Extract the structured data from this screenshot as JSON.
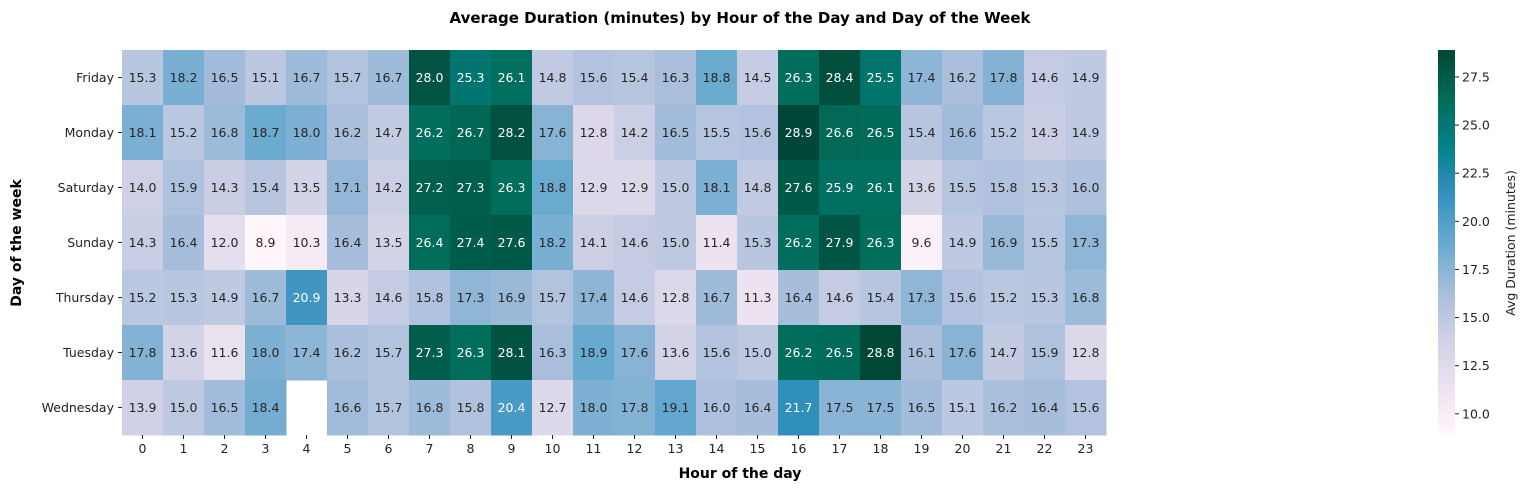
{
  "chart_data": {
    "type": "heatmap",
    "title": "Average Duration (minutes) by Hour of the Day and Day of the Week",
    "xlabel": "Hour of the day",
    "ylabel": "Day of the week",
    "x_categories": [
      "0",
      "1",
      "2",
      "3",
      "4",
      "5",
      "6",
      "7",
      "8",
      "9",
      "10",
      "11",
      "12",
      "13",
      "14",
      "15",
      "16",
      "17",
      "18",
      "19",
      "20",
      "21",
      "22",
      "23"
    ],
    "y_categories": [
      "Friday",
      "Monday",
      "Saturday",
      "Sunday",
      "Thursday",
      "Tuesday",
      "Wednesday"
    ],
    "values": [
      [
        15.3,
        18.2,
        16.5,
        15.1,
        16.7,
        15.7,
        16.7,
        28.0,
        25.3,
        26.1,
        14.8,
        15.6,
        15.4,
        16.3,
        18.8,
        14.5,
        26.3,
        28.4,
        25.5,
        17.4,
        16.2,
        17.8,
        14.6,
        14.9
      ],
      [
        18.1,
        15.2,
        16.8,
        18.7,
        18.0,
        16.2,
        14.7,
        26.2,
        26.7,
        28.2,
        17.6,
        12.8,
        14.2,
        16.5,
        15.5,
        15.6,
        28.9,
        26.6,
        26.5,
        15.4,
        16.6,
        15.2,
        14.3,
        14.9
      ],
      [
        14.0,
        15.9,
        14.3,
        15.4,
        13.5,
        17.1,
        14.2,
        27.2,
        27.3,
        26.3,
        18.8,
        12.9,
        12.9,
        15.0,
        18.1,
        14.8,
        27.6,
        25.9,
        26.1,
        13.6,
        15.5,
        15.8,
        15.3,
        16.0
      ],
      [
        14.3,
        16.4,
        12.0,
        8.9,
        10.3,
        16.4,
        13.5,
        26.4,
        27.4,
        27.6,
        18.2,
        14.1,
        14.6,
        15.0,
        11.4,
        15.3,
        26.2,
        27.9,
        26.3,
        9.6,
        14.9,
        16.9,
        15.5,
        17.3
      ],
      [
        15.2,
        15.3,
        14.9,
        16.7,
        20.9,
        13.3,
        14.6,
        15.8,
        17.3,
        16.9,
        15.7,
        17.4,
        14.6,
        12.8,
        16.7,
        11.3,
        16.4,
        14.6,
        15.4,
        17.3,
        15.6,
        15.2,
        15.3,
        16.8
      ],
      [
        17.8,
        13.6,
        11.6,
        18.0,
        17.4,
        16.2,
        15.7,
        27.3,
        26.3,
        28.1,
        16.3,
        18.9,
        17.6,
        13.6,
        15.6,
        15.0,
        26.2,
        26.5,
        28.8,
        16.1,
        17.6,
        14.7,
        15.9,
        12.8
      ],
      [
        13.9,
        15.0,
        16.5,
        18.4,
        null,
        16.6,
        15.7,
        16.8,
        15.8,
        20.4,
        12.7,
        18.0,
        17.8,
        19.1,
        16.0,
        16.4,
        21.7,
        17.5,
        17.5,
        16.5,
        15.1,
        16.2,
        16.4,
        15.6
      ]
    ],
    "value_format": "0.1f",
    "colormap": "PuBuGn",
    "color_scale": {
      "vmin": 8.9,
      "vmax": 28.9
    },
    "colorbar": {
      "label": "Avg Duration (minutes)",
      "ticks": [
        10.0,
        12.5,
        15.0,
        17.5,
        20.0,
        22.5,
        25.0,
        27.5
      ],
      "tick_labels": [
        "10.0",
        "12.5",
        "15.0",
        "17.5",
        "20.0",
        "22.5",
        "25.0",
        "27.5"
      ]
    },
    "colormap_stops": [
      [
        0.0,
        "#fff7fb"
      ],
      [
        0.125,
        "#ece2f0"
      ],
      [
        0.25,
        "#d0d1e6"
      ],
      [
        0.375,
        "#a6bddb"
      ],
      [
        0.5,
        "#67a9cf"
      ],
      [
        0.625,
        "#3690c0"
      ],
      [
        0.75,
        "#02818a"
      ],
      [
        0.875,
        "#016c59"
      ],
      [
        1.0,
        "#014636"
      ]
    ],
    "grid": false,
    "legend": "colorbar-right"
  }
}
